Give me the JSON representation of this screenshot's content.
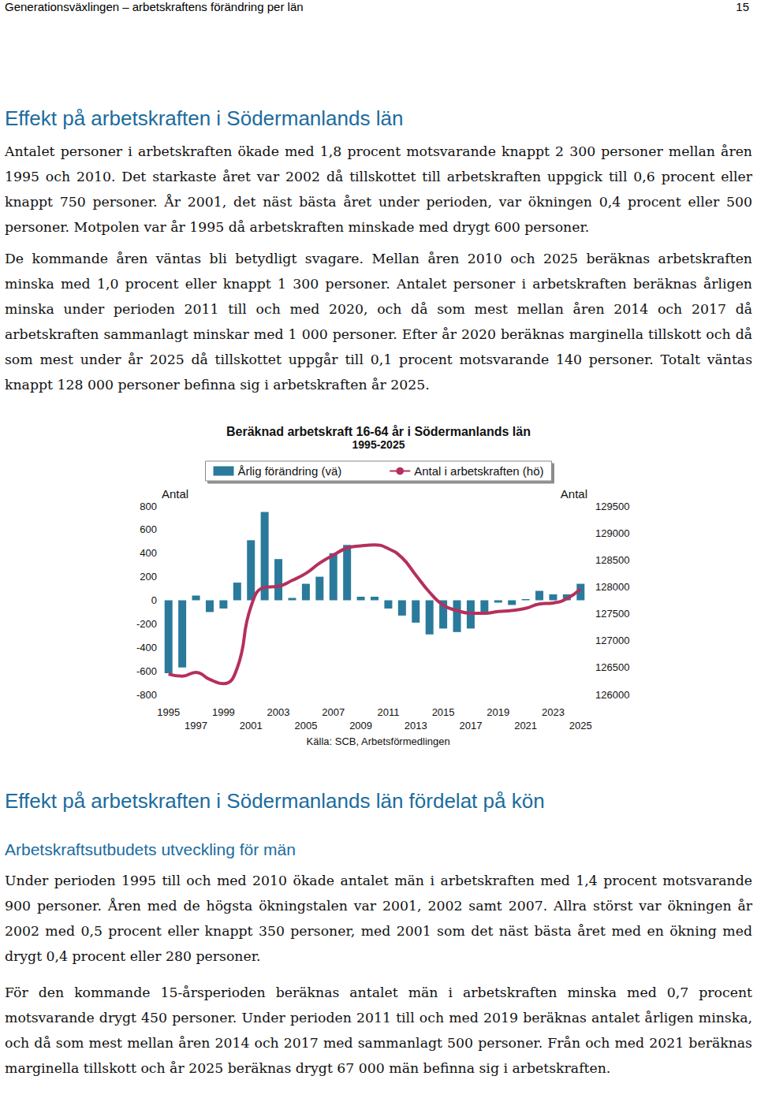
{
  "header": {
    "title": "Generationsväxlingen – arbetskraftens förändring per län",
    "page": 15
  },
  "sections": [
    {
      "heading": "Effekt på arbetskraften i Södermanlands län",
      "paragraphs": [
        "Antalet personer i arbetskraften ökade med 1,8 procent motsvarande knappt 2 300 personer mellan åren 1995 och 2010. Det starkaste året var 2002 då tillskottet till arbetskraften uppgick till 0,6 procent eller knappt 750 personer. År 2001, det näst bästa året under perioden, var ökningen 0,4 procent eller 500 personer. Motpolen var år 1995 då arbetskraften minskade med drygt 600 personer.",
        "De kommande åren väntas bli betydligt svagare. Mellan åren 2010 och 2025 beräknas arbetskraften minska med 1,0 procent eller knappt 1 300 personer. Antalet personer i arbetskraften beräknas årligen minska under perioden 2011 till och med 2020, och då som mest mellan åren 2014 och 2017 då arbetskraften sammanlagt minskar med 1 000 personer. Efter år 2020 beräknas marginella tillskott och då som mest under år 2025 då tillskottet uppgår till 0,1 procent motsvarande 140 personer. Totalt väntas knappt 128 000 personer befinna sig i arbetskraften år 2025."
      ]
    },
    {
      "heading": "Effekt på arbetskraften i Södermanlands län fördelat på kön",
      "subheading": "Arbetskraftsutbudets utveckling för män",
      "paragraphs": [
        "Under perioden 1995 till och med 2010 ökade antalet män i arbetskraften med 1,4 procent motsvarande 900 personer. Åren med de högsta ökningstalen var 2001, 2002 samt 2007. Allra störst var ökningen år 2002 med 0,5 procent eller knappt 350 personer, med 2001 som det näst bästa året med en ökning med drygt 0,4 procent eller 280 personer.",
        "För den kommande 15-årsperioden beräknas antalet män i arbetskraften minska med 0,7 procent motsvarande drygt 450 personer. Under perioden 2011 till och med 2019 beräknas antalet årligen minska, och då som mest mellan åren 2014 och 2017 med sammanlagt 500 personer. Från och med 2021 beräknas marginella tillskott och år 2025 beräknas drygt 67 000 män befinna sig i arbetskraften."
      ]
    }
  ],
  "chart_data": {
    "type": "bar",
    "title": "Beräknad arbetskraft 16-64 år i Södermanlands län",
    "subtitle": "1995-2025",
    "y_label": "Antal",
    "y2_label": "Antal",
    "source": "Källa: SCB, Arbetsförmedlingen",
    "categories": [
      "1995",
      null,
      "1997",
      null,
      "1999",
      null,
      "2001",
      null,
      "2003",
      null,
      "2005",
      null,
      "2007",
      null,
      "2009",
      null,
      "2011",
      null,
      "2013",
      null,
      "2015",
      null,
      "2017",
      null,
      "2019",
      null,
      "2021",
      null,
      "2023",
      null,
      "2025"
    ],
    "series": [
      {
        "name": "Årlig förändring (vä)",
        "type": "bar",
        "color": "#2a7a9b",
        "values": [
          -620,
          -570,
          40,
          -100,
          -70,
          150,
          510,
          750,
          350,
          20,
          140,
          200,
          400,
          470,
          30,
          30,
          -70,
          -130,
          -190,
          -290,
          -240,
          -270,
          -240,
          -120,
          -20,
          -40,
          10,
          80,
          50,
          50,
          140
        ]
      },
      {
        "name": "Antal i arbetskraften (hö)",
        "type": "line",
        "color": "#b5305c",
        "axis": "y2",
        "values": [
          126380,
          126340,
          126410,
          126280,
          126200,
          126490,
          127630,
          127990,
          128010,
          128120,
          128250,
          128440,
          128590,
          128720,
          128760,
          128780,
          128710,
          128540,
          128220,
          127900,
          127660,
          127560,
          127510,
          127510,
          127540,
          127560,
          127600,
          127680,
          127700,
          127780,
          127960
        ]
      }
    ],
    "ylim": [
      -800,
      800
    ],
    "yticks": [
      -800,
      -600,
      -400,
      -200,
      0,
      200,
      400,
      600,
      800
    ],
    "y2lim": [
      126000,
      129500
    ],
    "y2ticks": [
      126000,
      126500,
      127000,
      127500,
      128000,
      128500,
      129000,
      129500
    ],
    "legend": "top",
    "grid": false
  }
}
